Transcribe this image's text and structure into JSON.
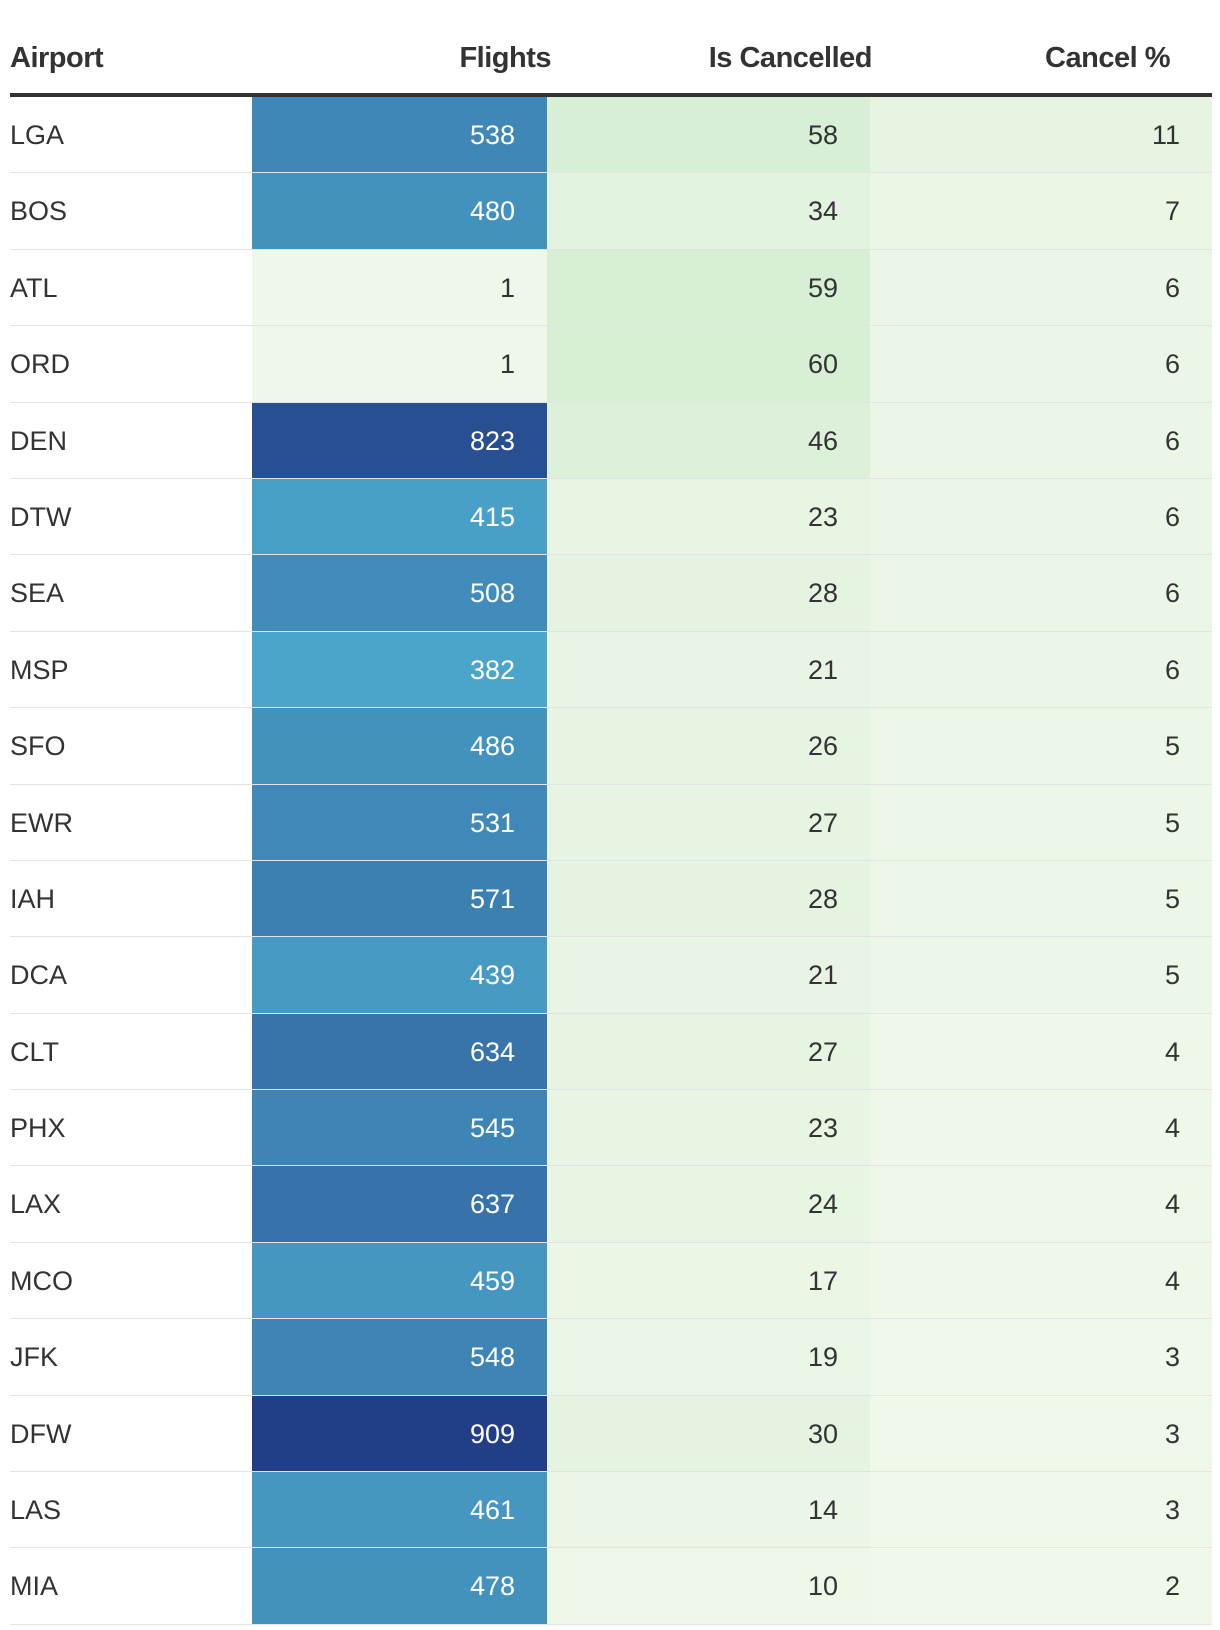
{
  "chart_data": {
    "type": "table",
    "columns": [
      "Airport",
      "Flights",
      "Is Cancelled",
      "Cancel %"
    ],
    "rows": [
      {
        "airport": "LGA",
        "flights": 538,
        "is_cancelled": 58,
        "cancel_pct": 11
      },
      {
        "airport": "BOS",
        "flights": 480,
        "is_cancelled": 34,
        "cancel_pct": 7
      },
      {
        "airport": "ATL",
        "flights": 1,
        "is_cancelled": 59,
        "cancel_pct": 6
      },
      {
        "airport": "ORD",
        "flights": 1,
        "is_cancelled": 60,
        "cancel_pct": 6
      },
      {
        "airport": "DEN",
        "flights": 823,
        "is_cancelled": 46,
        "cancel_pct": 6
      },
      {
        "airport": "DTW",
        "flights": 415,
        "is_cancelled": 23,
        "cancel_pct": 6
      },
      {
        "airport": "SEA",
        "flights": 508,
        "is_cancelled": 28,
        "cancel_pct": 6
      },
      {
        "airport": "MSP",
        "flights": 382,
        "is_cancelled": 21,
        "cancel_pct": 6
      },
      {
        "airport": "SFO",
        "flights": 486,
        "is_cancelled": 26,
        "cancel_pct": 5
      },
      {
        "airport": "EWR",
        "flights": 531,
        "is_cancelled": 27,
        "cancel_pct": 5
      },
      {
        "airport": "IAH",
        "flights": 571,
        "is_cancelled": 28,
        "cancel_pct": 5
      },
      {
        "airport": "DCA",
        "flights": 439,
        "is_cancelled": 21,
        "cancel_pct": 5
      },
      {
        "airport": "CLT",
        "flights": 634,
        "is_cancelled": 27,
        "cancel_pct": 4
      },
      {
        "airport": "PHX",
        "flights": 545,
        "is_cancelled": 23,
        "cancel_pct": 4
      },
      {
        "airport": "LAX",
        "flights": 637,
        "is_cancelled": 24,
        "cancel_pct": 4
      },
      {
        "airport": "MCO",
        "flights": 459,
        "is_cancelled": 17,
        "cancel_pct": 4
      },
      {
        "airport": "JFK",
        "flights": 548,
        "is_cancelled": 19,
        "cancel_pct": 3
      },
      {
        "airport": "DFW",
        "flights": 909,
        "is_cancelled": 30,
        "cancel_pct": 3
      },
      {
        "airport": "LAS",
        "flights": 461,
        "is_cancelled": 14,
        "cancel_pct": 3
      },
      {
        "airport": "MIA",
        "flights": 478,
        "is_cancelled": 10,
        "cancel_pct": 2
      }
    ],
    "color_scales": {
      "flights": {
        "palette": "blues",
        "light": "#eff8e8",
        "mid": "#4ba5cb",
        "dark": "#213e86",
        "domain": [
          1,
          909
        ]
      },
      "is_cancelled": {
        "palette": "greens",
        "light": "#eef7e8",
        "dark": "#d6efd5",
        "domain": [
          10,
          60
        ]
      },
      "cancel_pct": {
        "palette": "greens",
        "light": "#f0f8ea",
        "dark": "#e7f4e1",
        "domain": [
          2,
          11
        ]
      }
    }
  }
}
